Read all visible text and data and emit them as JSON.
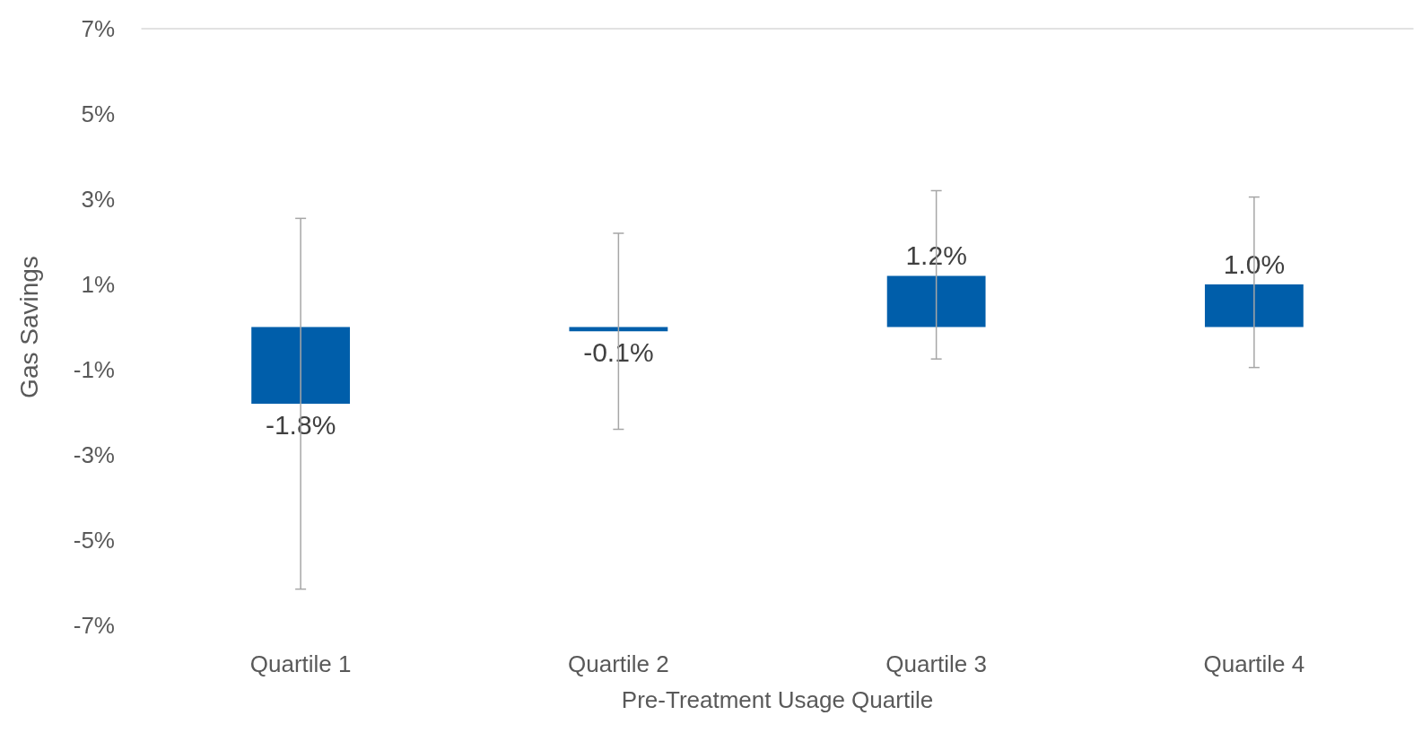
{
  "chart_data": {
    "type": "bar",
    "xlabel": "Pre-Treatment Usage Quartile",
    "ylabel": "Gas Savings",
    "categories": [
      "Quartile 1",
      "Quartile 2",
      "Quartile 3",
      "Quartile 4"
    ],
    "values": [
      -1.8,
      -0.1,
      1.2,
      1.0
    ],
    "value_labels": [
      "-1.8%",
      "-0.1%",
      "1.2%",
      "1.0%"
    ],
    "errors": [
      [
        -6.15,
        2.55
      ],
      [
        -2.4,
        2.2
      ],
      [
        -0.75,
        3.2
      ],
      [
        -0.95,
        3.05
      ]
    ],
    "color": "#005eaa",
    "ylim": [
      -7,
      7
    ],
    "yticks": [
      {
        "value": -7,
        "label": "-7%"
      },
      {
        "value": -5,
        "label": "-5%"
      },
      {
        "value": -3,
        "label": "-3%"
      },
      {
        "value": -1,
        "label": "-1%"
      },
      {
        "value": 1,
        "label": "1%"
      },
      {
        "value": 3,
        "label": "3%"
      },
      {
        "value": 5,
        "label": "5%"
      },
      {
        "value": 7,
        "label": "7%"
      }
    ],
    "grid": false
  }
}
